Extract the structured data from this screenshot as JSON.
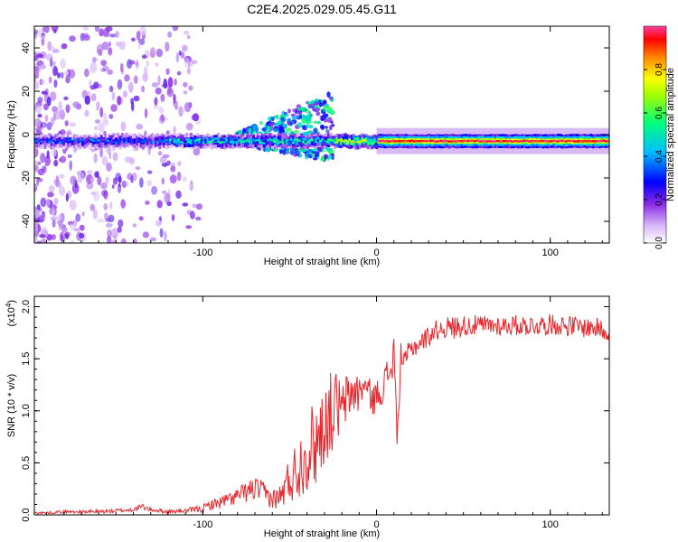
{
  "figure": {
    "title": "C2E4.2025.029.05.45.G11"
  },
  "chart_data": [
    {
      "type": "heatmap",
      "xlabel": "Height of straight line (km)",
      "ylabel": "Frequency (Hz)",
      "xlim": [
        -197,
        134
      ],
      "ylim": [
        -50,
        50
      ],
      "xticks": [
        -100,
        0,
        100
      ],
      "yticks": [
        -40,
        -20,
        0,
        20,
        40
      ],
      "colorbar": {
        "label": "Normalized spectral amplitude",
        "range": [
          0,
          1
        ],
        "ticks": [
          0.0,
          0.2,
          0.4,
          0.6,
          0.8
        ],
        "tick_labels": [
          "0.0",
          "0.2",
          "0.4",
          "0.6",
          "0.8"
        ],
        "colors": [
          "#ffffff",
          "#8a2be2",
          "#0000ff",
          "#00bfff",
          "#00ff80",
          "#ffff00",
          "#ff8000",
          "#ff0000",
          "#ff40a0"
        ]
      },
      "description_values": {
        "main_band_center_hz": -3,
        "main_band_halfwidth_hz": 2.5,
        "strong_from_km": 0,
        "segments": [
          {
            "x_start": -197,
            "x_end": -120,
            "level": 0.35
          },
          {
            "x_start": -120,
            "x_end": -60,
            "level": 0.5
          },
          {
            "x_start": -60,
            "x_end": -25,
            "level": 0.55
          },
          {
            "x_start": -25,
            "x_end": 0,
            "level": 0.75
          },
          {
            "x_start": 0,
            "x_end": 134,
            "level": 0.95
          }
        ]
      }
    },
    {
      "type": "line",
      "xlabel": "Height of straight line (km)",
      "ylabel": "SNR (10 * v/v)",
      "y_multiplier_label": "(x10",
      "y_multiplier_exp": "4",
      "xlim": [
        -197,
        134
      ],
      "ylim": [
        0,
        2.1
      ],
      "xticks": [
        -100,
        0,
        100
      ],
      "yticks": [
        0.0,
        0.5,
        1.0,
        1.5,
        2.0
      ],
      "ytick_labels": [
        "0.0",
        "0.5",
        "1.0",
        "1.5",
        "2.0"
      ],
      "color": "#e8262b",
      "series": [
        {
          "x": [
            -197,
            -190,
            -180,
            -170,
            -160,
            -150,
            -140,
            -135,
            -130,
            -120,
            -110,
            -100,
            -95,
            -90,
            -85,
            -80,
            -75,
            -70,
            -65,
            -60,
            -55,
            -50,
            -45,
            -42,
            -38,
            -35,
            -32,
            -28,
            -25,
            -22,
            -20,
            -18,
            -15,
            -12,
            -10,
            -8,
            -5,
            -2,
            0,
            3,
            5,
            8,
            10,
            12,
            14,
            16,
            18,
            20,
            25,
            30,
            35,
            40,
            45,
            50,
            60,
            70,
            80,
            90,
            100,
            110,
            120,
            125,
            130,
            134
          ],
          "y": [
            0.02,
            0.02,
            0.03,
            0.03,
            0.03,
            0.04,
            0.05,
            0.08,
            0.05,
            0.03,
            0.04,
            0.06,
            0.1,
            0.12,
            0.15,
            0.18,
            0.22,
            0.25,
            0.22,
            0.15,
            0.18,
            0.35,
            0.45,
            0.55,
            0.65,
            0.7,
            0.8,
            0.95,
            1.0,
            1.05,
            0.95,
            1.1,
            1.15,
            1.2,
            1.15,
            1.25,
            1.2,
            1.1,
            1.15,
            1.2,
            1.3,
            1.4,
            1.55,
            0.7,
            1.55,
            1.45,
            1.55,
            1.6,
            1.65,
            1.72,
            1.78,
            1.8,
            1.8,
            1.82,
            1.82,
            1.82,
            1.82,
            1.82,
            1.83,
            1.82,
            1.8,
            1.8,
            1.78,
            1.75
          ],
          "noise_amplitude": [
            0.01,
            0.01,
            0.015,
            0.015,
            0.02,
            0.02,
            0.02,
            0.03,
            0.02,
            0.02,
            0.02,
            0.04,
            0.05,
            0.06,
            0.07,
            0.08,
            0.1,
            0.12,
            0.1,
            0.1,
            0.12,
            0.25,
            0.3,
            0.35,
            0.4,
            0.45,
            0.4,
            0.4,
            0.4,
            0.35,
            0.3,
            0.25,
            0.25,
            0.2,
            0.2,
            0.15,
            0.15,
            0.15,
            0.15,
            0.15,
            0.15,
            0.2,
            0.25,
            0.1,
            0.15,
            0.1,
            0.1,
            0.1,
            0.1,
            0.1,
            0.1,
            0.1,
            0.12,
            0.1,
            0.1,
            0.1,
            0.1,
            0.1,
            0.1,
            0.1,
            0.1,
            0.1,
            0.1,
            0.1
          ]
        }
      ]
    }
  ]
}
